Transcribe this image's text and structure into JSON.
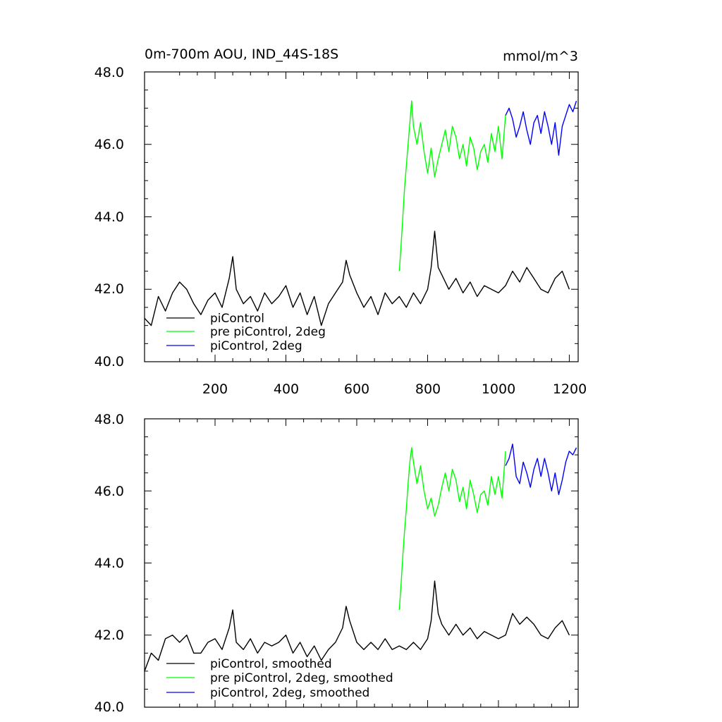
{
  "chart_data": [
    {
      "type": "line",
      "title": "0m-700m AOU, IND_44S-18S",
      "units": "mmol/m^3",
      "xlabel": "",
      "ylabel": "",
      "xlim": [
        1,
        1225
      ],
      "ylim": [
        40.0,
        48.0
      ],
      "xticks": [
        200,
        400,
        600,
        800,
        1000,
        1200
      ],
      "xtick_labels": [
        "200",
        "400",
        "600",
        "800",
        "1000",
        "1200"
      ],
      "yticks": [
        40,
        42,
        44,
        46,
        48
      ],
      "ytick_labels": [
        "40.0",
        "42.0",
        "44.0",
        "46.0",
        "48.0"
      ],
      "legend_position": "bottom-left",
      "series": [
        {
          "name": "piControl",
          "color": "#000000",
          "x": [
            1,
            20,
            40,
            60,
            80,
            100,
            120,
            140,
            160,
            180,
            200,
            220,
            240,
            250,
            260,
            280,
            300,
            320,
            340,
            360,
            380,
            400,
            420,
            440,
            460,
            480,
            500,
            520,
            540,
            560,
            570,
            580,
            600,
            620,
            640,
            660,
            680,
            700,
            720,
            740,
            760,
            780,
            800,
            810,
            820,
            830,
            840,
            860,
            880,
            900,
            920,
            940,
            960,
            980,
            1000,
            1020,
            1040,
            1060,
            1080,
            1100,
            1120,
            1140,
            1160,
            1180,
            1200
          ],
          "y": [
            41.2,
            41.0,
            41.8,
            41.4,
            41.9,
            42.2,
            42.0,
            41.6,
            41.3,
            41.7,
            41.9,
            41.5,
            42.3,
            42.9,
            42.0,
            41.6,
            41.8,
            41.4,
            41.9,
            41.6,
            41.8,
            42.1,
            41.5,
            41.9,
            41.3,
            41.8,
            41.0,
            41.6,
            41.9,
            42.2,
            42.8,
            42.4,
            41.9,
            41.5,
            41.8,
            41.3,
            41.9,
            41.6,
            41.8,
            41.5,
            41.9,
            41.6,
            42.0,
            42.6,
            43.6,
            42.6,
            42.4,
            42.0,
            42.3,
            41.9,
            42.2,
            41.8,
            42.1,
            42.0,
            41.9,
            42.1,
            42.5,
            42.2,
            42.6,
            42.3,
            42.0,
            41.9,
            42.3,
            42.5,
            42.0
          ]
        },
        {
          "name": "pre piControl, 2deg",
          "color": "#00ff00",
          "x": [
            720,
            725,
            730,
            735,
            740,
            745,
            750,
            755,
            760,
            770,
            780,
            790,
            800,
            810,
            820,
            830,
            840,
            850,
            860,
            870,
            880,
            890,
            900,
            910,
            920,
            930,
            940,
            950,
            960,
            970,
            980,
            990,
            1000,
            1010,
            1020
          ],
          "y": [
            42.5,
            43.2,
            44.0,
            44.8,
            45.4,
            46.0,
            46.6,
            47.2,
            46.5,
            46.0,
            46.6,
            45.8,
            45.2,
            45.9,
            45.1,
            45.6,
            46.0,
            46.4,
            45.8,
            46.5,
            46.2,
            45.6,
            46.0,
            45.4,
            46.2,
            45.9,
            45.3,
            45.8,
            46.0,
            45.5,
            46.3,
            45.8,
            46.5,
            45.6,
            46.8
          ]
        },
        {
          "name": "piControl, 2deg",
          "color": "#0000ff",
          "x": [
            1020,
            1030,
            1040,
            1050,
            1060,
            1070,
            1080,
            1090,
            1100,
            1110,
            1120,
            1130,
            1140,
            1150,
            1160,
            1170,
            1180,
            1190,
            1200,
            1210,
            1220
          ],
          "y": [
            46.8,
            47.0,
            46.7,
            46.2,
            46.5,
            46.9,
            46.4,
            46.0,
            46.6,
            46.8,
            46.3,
            46.9,
            46.5,
            46.0,
            46.6,
            45.7,
            46.5,
            46.8,
            47.1,
            46.9,
            47.2
          ]
        }
      ]
    },
    {
      "type": "line",
      "title": "",
      "units": "",
      "xlabel": "",
      "ylabel": "",
      "xlim": [
        1,
        1225
      ],
      "ylim": [
        40.0,
        48.0
      ],
      "xticks": [
        200,
        400,
        600,
        800,
        1000,
        1200
      ],
      "yticks": [
        40,
        42,
        44,
        46,
        48
      ],
      "ytick_labels": [
        "40.0",
        "42.0",
        "44.0",
        "46.0",
        "48.0"
      ],
      "legend_position": "bottom-left",
      "series": [
        {
          "name": "piControl, smoothed",
          "color": "#000000",
          "x": [
            1,
            20,
            40,
            60,
            80,
            100,
            120,
            140,
            160,
            180,
            200,
            220,
            240,
            250,
            260,
            280,
            300,
            320,
            340,
            360,
            380,
            400,
            420,
            440,
            460,
            480,
            500,
            520,
            540,
            560,
            570,
            580,
            600,
            620,
            640,
            660,
            680,
            700,
            720,
            740,
            760,
            780,
            800,
            810,
            820,
            830,
            840,
            860,
            880,
            900,
            920,
            940,
            960,
            980,
            1000,
            1020,
            1040,
            1060,
            1080,
            1100,
            1120,
            1140,
            1160,
            1180,
            1200
          ],
          "y": [
            41.0,
            41.5,
            41.3,
            41.9,
            42.0,
            41.8,
            42.0,
            41.5,
            41.5,
            41.8,
            41.9,
            41.6,
            42.2,
            42.7,
            41.8,
            41.6,
            41.9,
            41.5,
            41.8,
            41.7,
            41.8,
            42.0,
            41.5,
            41.8,
            41.4,
            41.7,
            41.3,
            41.6,
            41.8,
            42.2,
            42.8,
            42.4,
            41.8,
            41.6,
            41.8,
            41.6,
            41.9,
            41.6,
            41.7,
            41.6,
            41.8,
            41.6,
            41.9,
            42.4,
            43.5,
            42.6,
            42.3,
            42.0,
            42.3,
            42.0,
            42.2,
            41.9,
            42.1,
            42.0,
            41.9,
            42.0,
            42.6,
            42.3,
            42.5,
            42.3,
            42.0,
            41.9,
            42.2,
            42.4,
            42.0
          ]
        },
        {
          "name": "pre piControl, 2deg, smoothed",
          "color": "#00ff00",
          "x": [
            720,
            725,
            730,
            735,
            740,
            745,
            750,
            755,
            760,
            770,
            780,
            790,
            800,
            810,
            820,
            830,
            840,
            850,
            860,
            870,
            880,
            890,
            900,
            910,
            920,
            930,
            940,
            950,
            960,
            970,
            980,
            990,
            1000,
            1010,
            1020
          ],
          "y": [
            42.7,
            43.4,
            44.2,
            44.9,
            45.5,
            46.2,
            46.8,
            47.2,
            46.8,
            46.2,
            46.7,
            46.0,
            45.5,
            45.8,
            45.3,
            45.6,
            46.1,
            46.5,
            46.0,
            46.6,
            46.3,
            45.7,
            46.1,
            45.5,
            46.3,
            45.9,
            45.4,
            45.9,
            46.0,
            45.6,
            46.4,
            45.9,
            46.4,
            45.8,
            47.1
          ]
        },
        {
          "name": "piControl, 2deg, smoothed",
          "color": "#0000ff",
          "x": [
            1020,
            1030,
            1040,
            1050,
            1060,
            1070,
            1080,
            1090,
            1100,
            1110,
            1120,
            1130,
            1140,
            1150,
            1160,
            1170,
            1180,
            1190,
            1200,
            1210,
            1220
          ],
          "y": [
            46.7,
            46.9,
            47.3,
            46.4,
            46.2,
            46.8,
            46.5,
            46.1,
            46.6,
            46.9,
            46.4,
            46.9,
            46.5,
            46.0,
            46.5,
            45.9,
            46.3,
            46.8,
            47.1,
            47.0,
            47.2
          ]
        }
      ]
    }
  ]
}
